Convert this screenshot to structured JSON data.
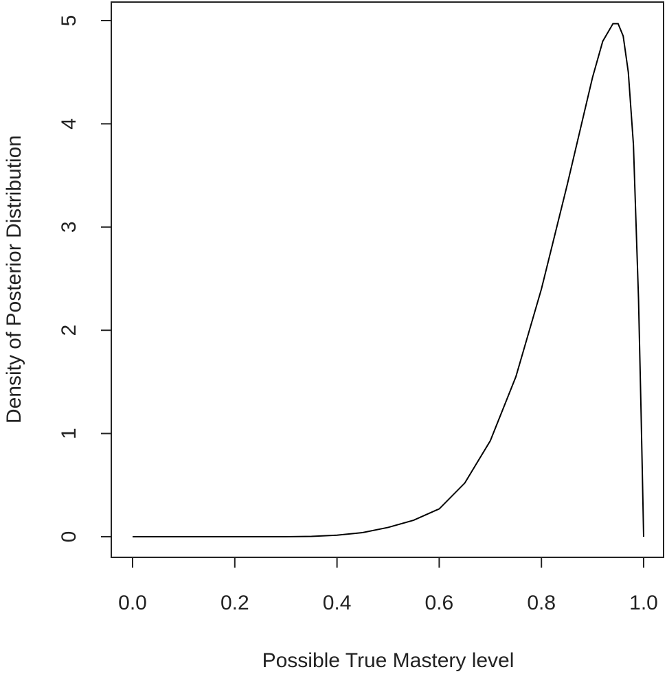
{
  "chart_data": {
    "type": "line",
    "x_label": "Possible True Mastery level",
    "y_label": "Density of Posterior Distribution",
    "x": [
      0,
      0.1,
      0.2,
      0.3,
      0.35,
      0.4,
      0.45,
      0.5,
      0.55,
      0.6,
      0.65,
      0.7,
      0.75,
      0.8,
      0.85,
      0.9,
      0.92,
      0.94,
      0.95,
      0.96,
      0.97,
      0.98,
      0.99,
      0.995,
      1.0
    ],
    "series": [
      {
        "color": "#000000",
        "values": [
          0,
          0,
          0,
          0,
          0.003,
          0.015,
          0.04,
          0.09,
          0.16,
          0.27,
          0.52,
          0.93,
          1.55,
          2.4,
          3.4,
          4.45,
          4.8,
          4.97,
          4.97,
          4.85,
          4.5,
          3.8,
          2.3,
          1.2,
          0
        ]
      }
    ],
    "xlim": [
      0,
      1
    ],
    "ylim": [
      0,
      5
    ],
    "xticks": [
      {
        "value": 0,
        "label": "0.0"
      },
      {
        "value": 0.2,
        "label": "0.2"
      },
      {
        "value": 0.4,
        "label": "0.4"
      },
      {
        "value": 0.6,
        "label": "0.6"
      },
      {
        "value": 0.8,
        "label": "0.8"
      },
      {
        "value": 1,
        "label": "1.0"
      }
    ],
    "yticks": [
      0,
      1,
      2,
      3,
      4,
      5
    ]
  }
}
